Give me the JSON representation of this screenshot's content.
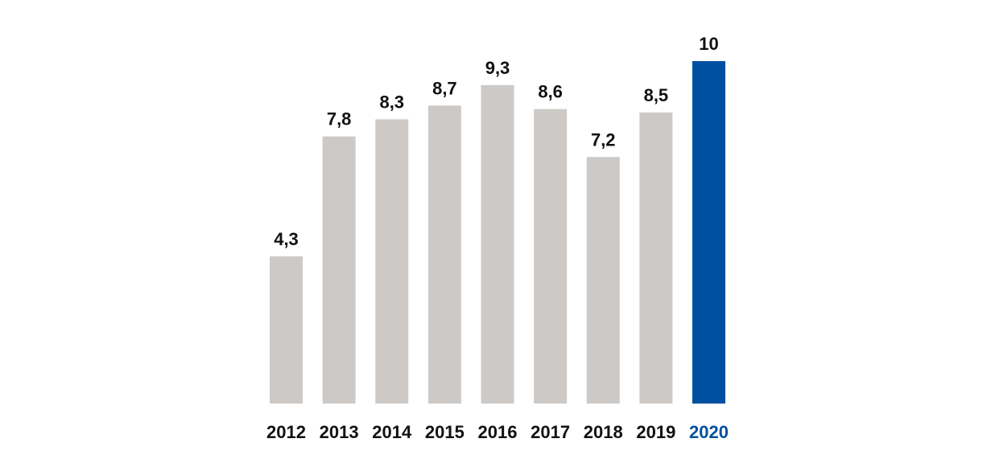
{
  "chart_data": {
    "type": "bar",
    "title": "",
    "xlabel": "",
    "ylabel": "",
    "categories": [
      "2012",
      "2013",
      "2014",
      "2015",
      "2016",
      "2017",
      "2018",
      "2019",
      "2020"
    ],
    "values": [
      4.3,
      7.8,
      8.3,
      8.7,
      9.3,
      8.6,
      7.2,
      8.5,
      10
    ],
    "value_labels": [
      "4,3",
      "7,8",
      "8,3",
      "8,7",
      "9,3",
      "8,6",
      "7,2",
      "8,5",
      "10"
    ],
    "ylim": [
      0,
      10
    ],
    "grid": false,
    "legend": "none",
    "highlight_category": "2020",
    "colors": {
      "bar": "#cdc9c7",
      "highlight_bar": "#0050a0",
      "label": "#111111",
      "highlight_label": "#0050a0"
    }
  }
}
